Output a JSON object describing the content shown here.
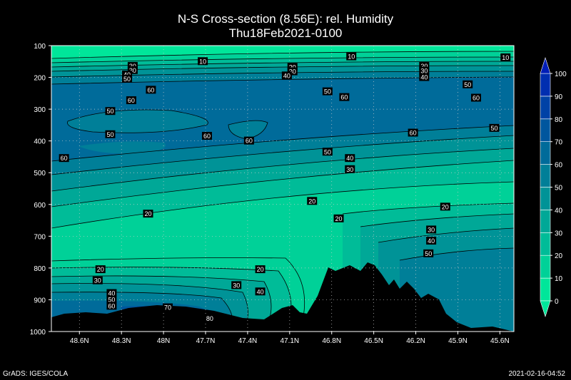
{
  "chart_data": {
    "type": "heatmap",
    "title": "N-S Cross-section (8.56E): rel. Humidity",
    "subtitle": "Thu18Feb2021-0100",
    "x_tick_labels": [
      "48.6N",
      "48.3N",
      "48N",
      "47.7N",
      "47.4N",
      "47.1N",
      "46.8N",
      "46.5N",
      "46.2N",
      "45.9N",
      "45.6N"
    ],
    "x_ticks": [
      48.6,
      48.3,
      48.0,
      47.7,
      47.4,
      47.1,
      46.8,
      46.5,
      46.2,
      45.9,
      45.6
    ],
    "xlim": [
      48.8,
      45.5
    ],
    "y_tick_labels": [
      "100",
      "200",
      "300",
      "400",
      "500",
      "600",
      "700",
      "800",
      "900",
      "1000"
    ],
    "y_ticks": [
      100,
      200,
      300,
      400,
      500,
      600,
      700,
      800,
      900,
      1000
    ],
    "ylim": [
      100,
      1000
    ],
    "grid": true,
    "colorbar": {
      "levels": [
        "0",
        "10",
        "20",
        "30",
        "40",
        "50",
        "60",
        "70",
        "80",
        "90",
        "100"
      ],
      "colors": [
        "#00e69a",
        "#00d198",
        "#00bc98",
        "#00a897",
        "#009397",
        "#007f98",
        "#006b9a",
        "#00569e",
        "#0042a6",
        "#002eb0",
        "#001eb8"
      ]
    },
    "contour_labels": [
      {
        "x": 47.72,
        "y": 150,
        "v": "10"
      },
      {
        "x": 46.66,
        "y": 135,
        "v": "10"
      },
      {
        "x": 45.56,
        "y": 138,
        "v": "10"
      },
      {
        "x": 48.22,
        "y": 165,
        "v": "30"
      },
      {
        "x": 48.22,
        "y": 178,
        "v": "30"
      },
      {
        "x": 48.26,
        "y": 192,
        "v": "40"
      },
      {
        "x": 48.26,
        "y": 205,
        "v": "50"
      },
      {
        "x": 47.08,
        "y": 168,
        "v": "20"
      },
      {
        "x": 47.08,
        "y": 182,
        "v": "30"
      },
      {
        "x": 47.12,
        "y": 195,
        "v": "40"
      },
      {
        "x": 46.14,
        "y": 165,
        "v": "20"
      },
      {
        "x": 46.14,
        "y": 180,
        "v": "30"
      },
      {
        "x": 46.14,
        "y": 200,
        "v": "40"
      },
      {
        "x": 48.09,
        "y": 240,
        "v": "60"
      },
      {
        "x": 48.23,
        "y": 273,
        "v": "60"
      },
      {
        "x": 48.38,
        "y": 307,
        "v": "50"
      },
      {
        "x": 46.83,
        "y": 245,
        "v": "50"
      },
      {
        "x": 46.71,
        "y": 263,
        "v": "60"
      },
      {
        "x": 45.83,
        "y": 223,
        "v": "50"
      },
      {
        "x": 45.77,
        "y": 265,
        "v": "60"
      },
      {
        "x": 48.38,
        "y": 380,
        "v": "50"
      },
      {
        "x": 47.69,
        "y": 385,
        "v": "60"
      },
      {
        "x": 47.39,
        "y": 400,
        "v": "60"
      },
      {
        "x": 46.22,
        "y": 375,
        "v": "60"
      },
      {
        "x": 45.64,
        "y": 360,
        "v": "50"
      },
      {
        "x": 48.71,
        "y": 455,
        "v": "60"
      },
      {
        "x": 46.83,
        "y": 435,
        "v": "50"
      },
      {
        "x": 46.67,
        "y": 455,
        "v": "40"
      },
      {
        "x": 46.67,
        "y": 490,
        "v": "30"
      },
      {
        "x": 48.11,
        "y": 630,
        "v": "20"
      },
      {
        "x": 46.94,
        "y": 590,
        "v": "20"
      },
      {
        "x": 46.75,
        "y": 645,
        "v": "20"
      },
      {
        "x": 45.99,
        "y": 608,
        "v": "20"
      },
      {
        "x": 46.09,
        "y": 680,
        "v": "30"
      },
      {
        "x": 46.09,
        "y": 715,
        "v": "40"
      },
      {
        "x": 46.11,
        "y": 755,
        "v": "50"
      },
      {
        "x": 48.45,
        "y": 805,
        "v": "20"
      },
      {
        "x": 47.31,
        "y": 805,
        "v": "20"
      },
      {
        "x": 48.47,
        "y": 840,
        "v": "30"
      },
      {
        "x": 47.48,
        "y": 855,
        "v": "30"
      },
      {
        "x": 47.31,
        "y": 875,
        "v": "40"
      },
      {
        "x": 48.37,
        "y": 880,
        "v": "40"
      },
      {
        "x": 48.37,
        "y": 900,
        "v": "50"
      },
      {
        "x": 48.37,
        "y": 920,
        "v": "60"
      },
      {
        "x": 47.97,
        "y": 925,
        "v": "70"
      },
      {
        "x": 47.67,
        "y": 960,
        "v": "80"
      }
    ]
  },
  "footer": {
    "left": "GrADS: IGES/COLA",
    "right": "2021-02-16-04:52"
  }
}
